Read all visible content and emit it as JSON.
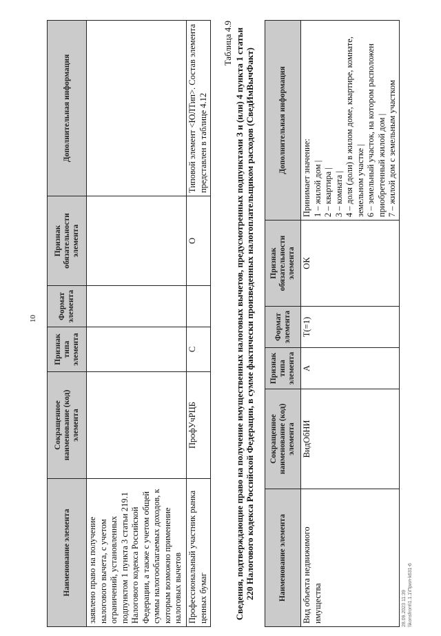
{
  "page_number": "10",
  "table1": {
    "headers": [
      "Наименование элемента",
      "Сокращенное наименование (код) элемента",
      "Признак типа элемента",
      "Формат элемента",
      "Признак обязательности элемента",
      "Дополнительная информация"
    ],
    "rows": [
      [
        "заявлено право на получение налогового вычета, с учетом ограничений, установленных подпунктом 1 пункта 3 статьи 219.1 Налогового кодекса Российской Федерации, а также с учетом общей суммы налогооблагаемых доходов, к которым возможно применение налоговых вычетов",
        "",
        "",
        "",
        "",
        ""
      ],
      [
        "Профессиональный участник рынка ценных бумаг",
        "ПрофУчРЦБ",
        "С",
        "",
        "О",
        "Типовой элемент <ЮЛТип>. Состав элемента представлен в таблице 4.12"
      ]
    ]
  },
  "table2": {
    "caption": "Таблица 4.9",
    "title": "Сведения, подтверждающие право на получение имущественных налоговых вычетов, предусмотренных подпунктами 3 и (или) 4 пункта 1 статьи 220 Налогового кодекса Российской Федерации, в сумме фактически произведенных налогоплательщиком расходов (СведИмВычФакт)",
    "headers": [
      "Наименование элемента",
      "Сокращенное наименование (код) элемента",
      "Признак типа элемента",
      "Формат элемента",
      "Признак обязательности элемента",
      "Дополнительная информация"
    ],
    "rows": [
      {
        "name": "Вид объекта недвижимого имущества",
        "code": "ВидОбНИ",
        "type": "А",
        "format": "T(=1)",
        "required": "ОК",
        "info": [
          "Принимает значение:",
          "1 – жилой дом |",
          "2 – квартира |",
          "3 – комната |",
          "4 – доля (доли) в жилом доме, квартире, комнате, земельном участке |",
          "6 – земельный участок, на котором расположен приобретенный жилой дом |",
          "7 – жилой дом с земельным участком"
        ]
      }
    ]
  },
  "footer": {
    "timestamp": "28.09.2023 11:39",
    "path": "\\\\konsfront\\1.1.1\\Прил-k631-6"
  }
}
